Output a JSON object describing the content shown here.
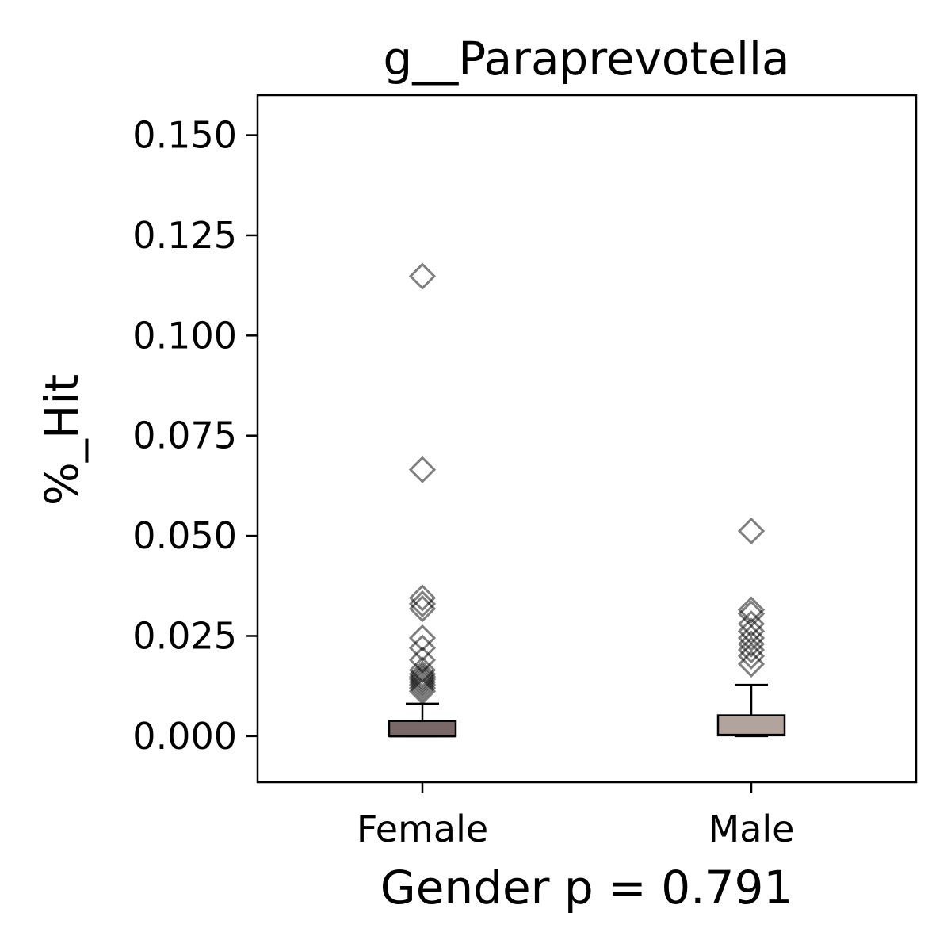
{
  "chart_data": {
    "type": "box",
    "title": "g__Paraprevotella",
    "xlabel": "Gender p = 0.791",
    "ylabel": "%_Hit",
    "ylim": [
      -0.0115,
      0.16
    ],
    "yticks": [
      "0.000",
      "0.025",
      "0.050",
      "0.075",
      "0.100",
      "0.125",
      "0.150"
    ],
    "ytick_values": [
      0,
      0.025,
      0.05,
      0.075,
      0.1,
      0.125,
      0.15
    ],
    "categories": [
      "Female",
      "Male"
    ],
    "boxes": [
      {
        "name": "Female",
        "color": "#7a6868",
        "whislo": 0,
        "q1": 0,
        "median": 0,
        "q3": 0.0038,
        "whishi": 0.0081,
        "fliers": [
          0.1148,
          0.0665,
          0.0345,
          0.033,
          0.0318,
          0.0245,
          0.022,
          0.019,
          0.0165,
          0.0155,
          0.0148,
          0.0142,
          0.0135,
          0.0128,
          0.012,
          0.0112
        ]
      },
      {
        "name": "Male",
        "color": "#b2a49c",
        "whislo": 0,
        "q1": 0.0002,
        "median": 0.0003,
        "q3": 0.0052,
        "whishi": 0.0128,
        "fliers": [
          0.0512,
          0.0315,
          0.0305,
          0.028,
          0.0262,
          0.0245,
          0.023,
          0.0215,
          0.02,
          0.018
        ]
      }
    ],
    "grid": false,
    "legend": "none"
  }
}
